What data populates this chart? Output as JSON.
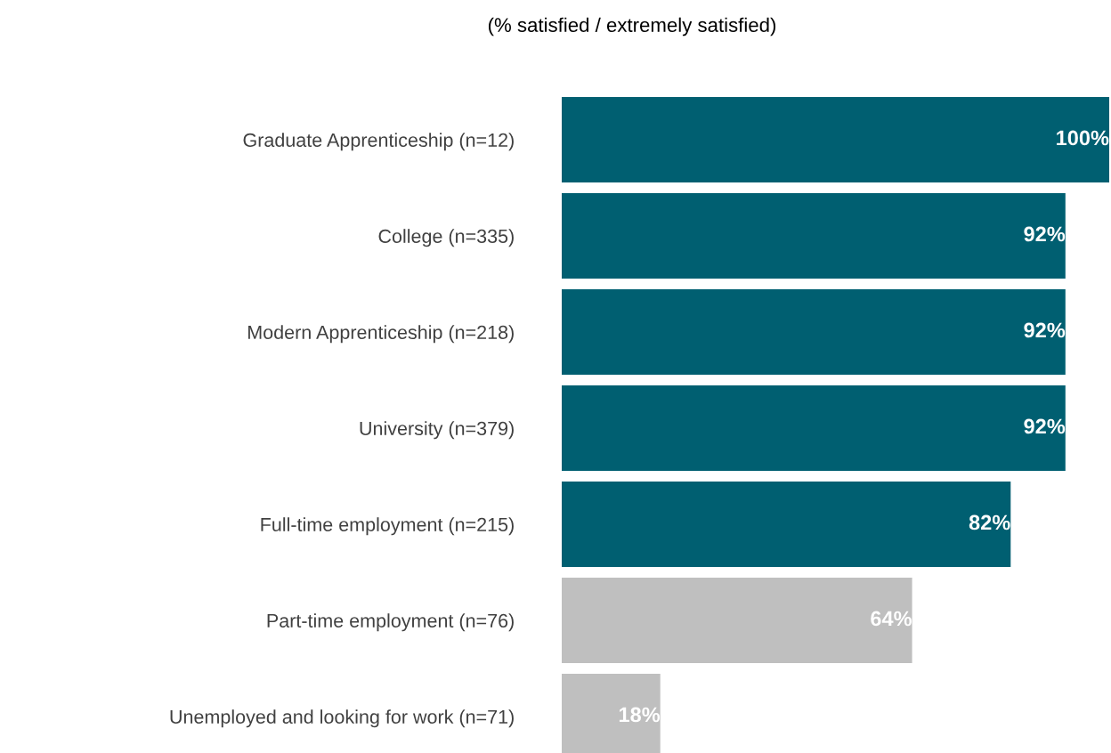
{
  "chart_data": {
    "type": "bar",
    "orientation": "horizontal",
    "title": "(% satisfied / extremely satisfied)",
    "categories": [
      "Graduate Apprenticeship (n=12)",
      "College (n=335)",
      "Modern Apprenticeship (n=218)",
      "University (n=379)",
      "Full-time employment (n=215)",
      "Part-time employment (n=76)",
      "Unemployed and looking for work (n=71)"
    ],
    "values": [
      100,
      92,
      92,
      92,
      82,
      64,
      18
    ],
    "colors": [
      "#005f71",
      "#005f71",
      "#005f71",
      "#005f71",
      "#005f71",
      "#bfbfbf",
      "#bfbfbf"
    ],
    "value_labels": [
      "100%",
      "92%",
      "92%",
      "92%",
      "82%",
      "64%",
      "18%"
    ],
    "xlim": [
      0,
      100
    ],
    "tick_labels": "y",
    "grid": false
  }
}
